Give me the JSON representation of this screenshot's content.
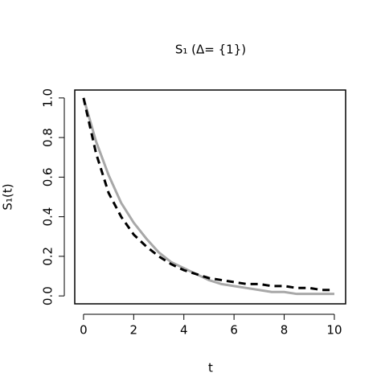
{
  "chart_data": {
    "type": "line",
    "title": "S₁ (Δ= {1})",
    "x_label": "t",
    "y_label": "S₁(t)",
    "x": [
      0,
      0.5,
      1,
      1.5,
      2,
      2.5,
      3,
      3.5,
      4,
      4.5,
      5,
      5.5,
      6,
      6.5,
      7,
      7.5,
      8,
      8.5,
      9,
      9.5,
      10
    ],
    "series": [
      {
        "color": "#a8a8a8",
        "dash": false,
        "values": [
          1,
          0.78,
          0.61,
          0.47,
          0.37,
          0.29,
          0.22,
          0.17,
          0.14,
          0.11,
          0.08,
          0.06,
          0.05,
          0.04,
          0.03,
          0.02,
          0.02,
          0.01,
          0.01,
          0.01,
          0.01
        ]
      },
      {
        "color": "#000000",
        "dash": true,
        "values": [
          1,
          0.72,
          0.52,
          0.4,
          0.31,
          0.25,
          0.2,
          0.16,
          0.13,
          0.11,
          0.09,
          0.08,
          0.07,
          0.06,
          0.06,
          0.05,
          0.05,
          0.04,
          0.04,
          0.03,
          0.03
        ]
      }
    ],
    "xlim": [
      -0.35,
      10.45
    ],
    "ylim": [
      -0.04,
      1.04
    ],
    "xticks": [
      0,
      2,
      4,
      6,
      8,
      10
    ],
    "yticks": [
      {
        "value": 0,
        "label": "0.0"
      },
      {
        "value": 0.2,
        "label": "0.2"
      },
      {
        "value": 0.4,
        "label": "0.4"
      },
      {
        "value": 0.6,
        "label": "0.6"
      },
      {
        "value": 0.8,
        "label": "0.8"
      },
      {
        "value": 1,
        "label": "1.0"
      }
    ]
  }
}
